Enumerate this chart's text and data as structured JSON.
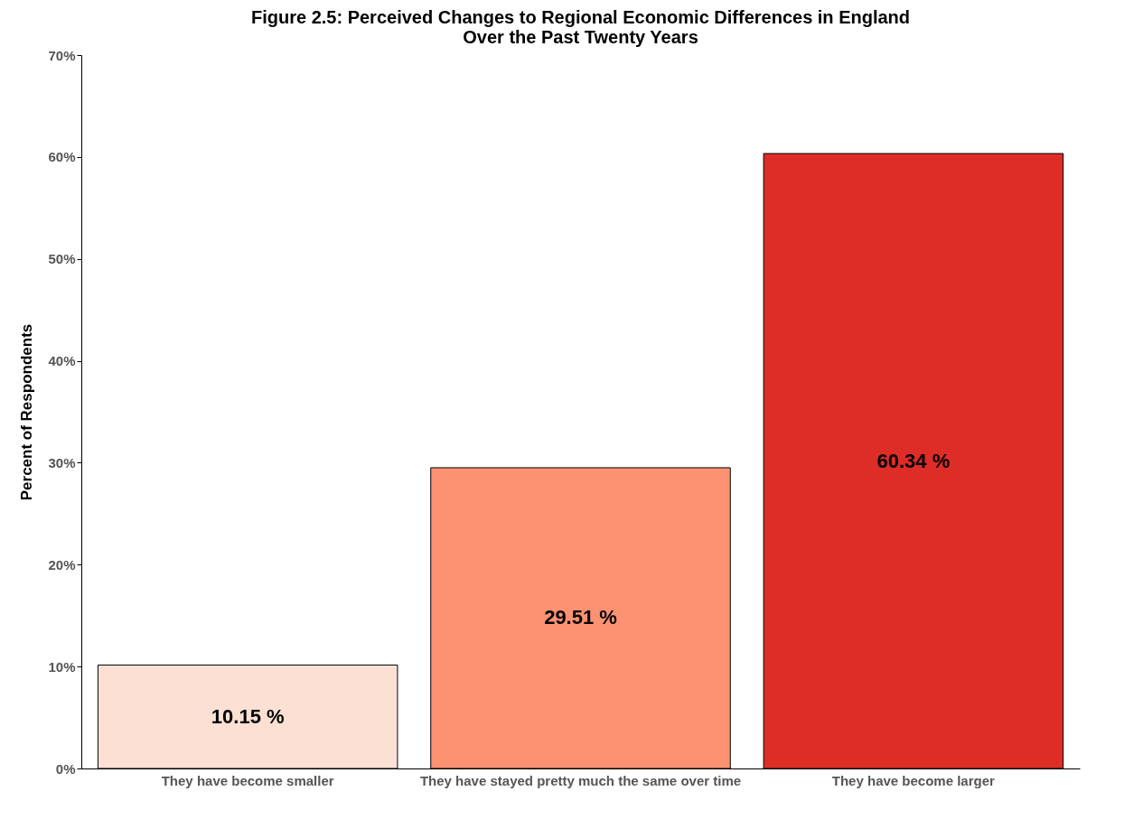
{
  "chart_data": {
    "type": "bar",
    "title": "Figure 2.5: Perceived Changes to Regional Economic Differences in England\nOver the Past Twenty Years",
    "ylabel": "Percent of Respondents",
    "categories": [
      "They have become smaller",
      "They have stayed pretty much the same over time",
      "They have become larger"
    ],
    "values": [
      10.15,
      29.51,
      60.34
    ],
    "colors": [
      "#fde0d4",
      "#fc9272",
      "#de2d27"
    ],
    "value_labels": [
      "10.15 %",
      "29.51 %",
      "60.34 %"
    ],
    "ylim": [
      0,
      70
    ],
    "yticks": [
      {
        "value": 0,
        "label": "0%"
      },
      {
        "value": 10,
        "label": "10%"
      },
      {
        "value": 20,
        "label": "20%"
      },
      {
        "value": 30,
        "label": "30%"
      },
      {
        "value": 40,
        "label": "40%"
      },
      {
        "value": 50,
        "label": "50%"
      },
      {
        "value": 60,
        "label": "60%"
      },
      {
        "value": 70,
        "label": "70%"
      }
    ],
    "grid": false
  }
}
